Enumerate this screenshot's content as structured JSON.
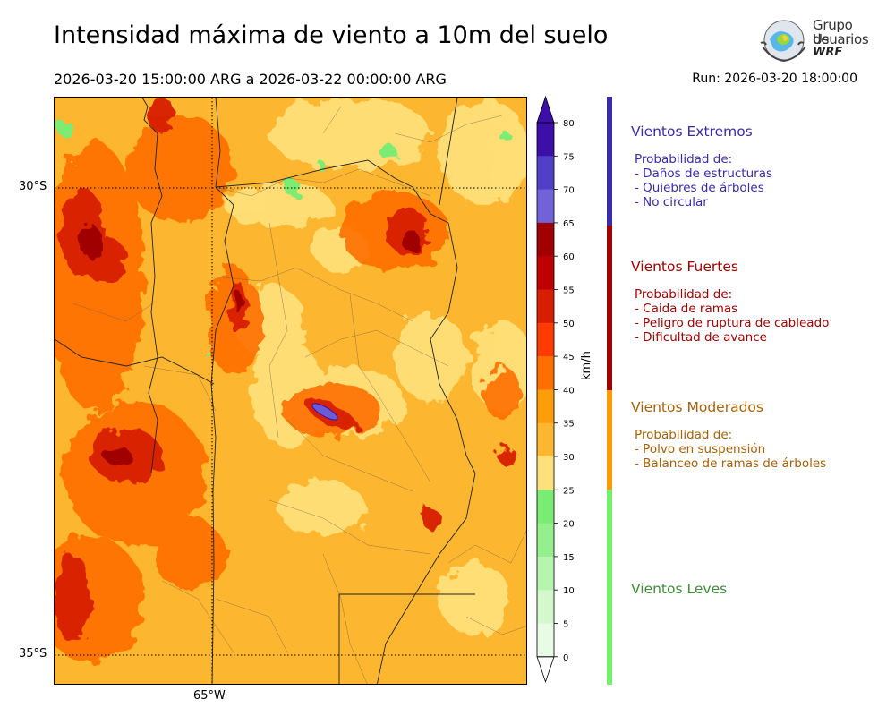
{
  "header": {
    "title": "Intensidad máxima de viento a 10m del suelo",
    "period": "2026-03-20 15:00:00 ARG  a  2026-03-22 00:00:00 ARG",
    "run": "Run: 2026-03-20 18:00:00"
  },
  "logo": {
    "line1": "Grupo de",
    "line2": "Usuarios",
    "line3": "WRF"
  },
  "map": {
    "lat_labels": [
      "30°S",
      "35°S"
    ],
    "lon_labels": [
      "65°W"
    ],
    "base_color": "#fdb62f",
    "hotspots": [
      {
        "level": "extreme",
        "color": "#6a5bd6",
        "desc": "small core"
      },
      {
        "level": "strong",
        "color": "#d71f00"
      },
      {
        "level": "moderate",
        "color": "#fe9d0a"
      },
      {
        "level": "light",
        "color": "#7bec73"
      }
    ]
  },
  "colorbar": {
    "unit": "km/h",
    "ticks": [
      "80",
      "75",
      "70",
      "65",
      "60",
      "55",
      "50",
      "45",
      "40",
      "35",
      "30",
      "25",
      "20",
      "15",
      "10",
      "5",
      "0"
    ],
    "colors": [
      "#3b0fa8",
      "#5040c7",
      "#7262d9",
      "#a00000",
      "#be0000",
      "#d71f00",
      "#ff3b00",
      "#ff6f00",
      "#fe9d0a",
      "#fdb62f",
      "#ffe079",
      "#7bec73",
      "#93f08b",
      "#b6f5ad",
      "#d2f8cc",
      "#e8fbe5"
    ]
  },
  "categories": [
    {
      "name": "Vientos Extremos",
      "color": "#3a2ca8",
      "bar_color": "#3a2ca8",
      "intro": "Probabilidad de:",
      "items": [
        "- Daños de estructuras",
        "- Quiebres de árboles",
        "- No circular"
      ]
    },
    {
      "name": "Vientos Fuertes",
      "color": "#a00000",
      "bar_color": "#a00000",
      "intro": "Probabilidad de:",
      "items": [
        "- Caida de ramas",
        "- Peligro de ruptura de cableado",
        "- Dificultad de avance"
      ]
    },
    {
      "name": "Vientos Moderados",
      "color": "#a6620a",
      "bar_color": "#ff9a00",
      "intro": "Probabilidad de:",
      "items": [
        "- Polvo en suspensión",
        "- Balanceo de ramas de árboles"
      ]
    },
    {
      "name": "Vientos Leves",
      "color": "#3f8f3a",
      "bar_color": "#73f06a",
      "intro": "",
      "items": []
    }
  ]
}
